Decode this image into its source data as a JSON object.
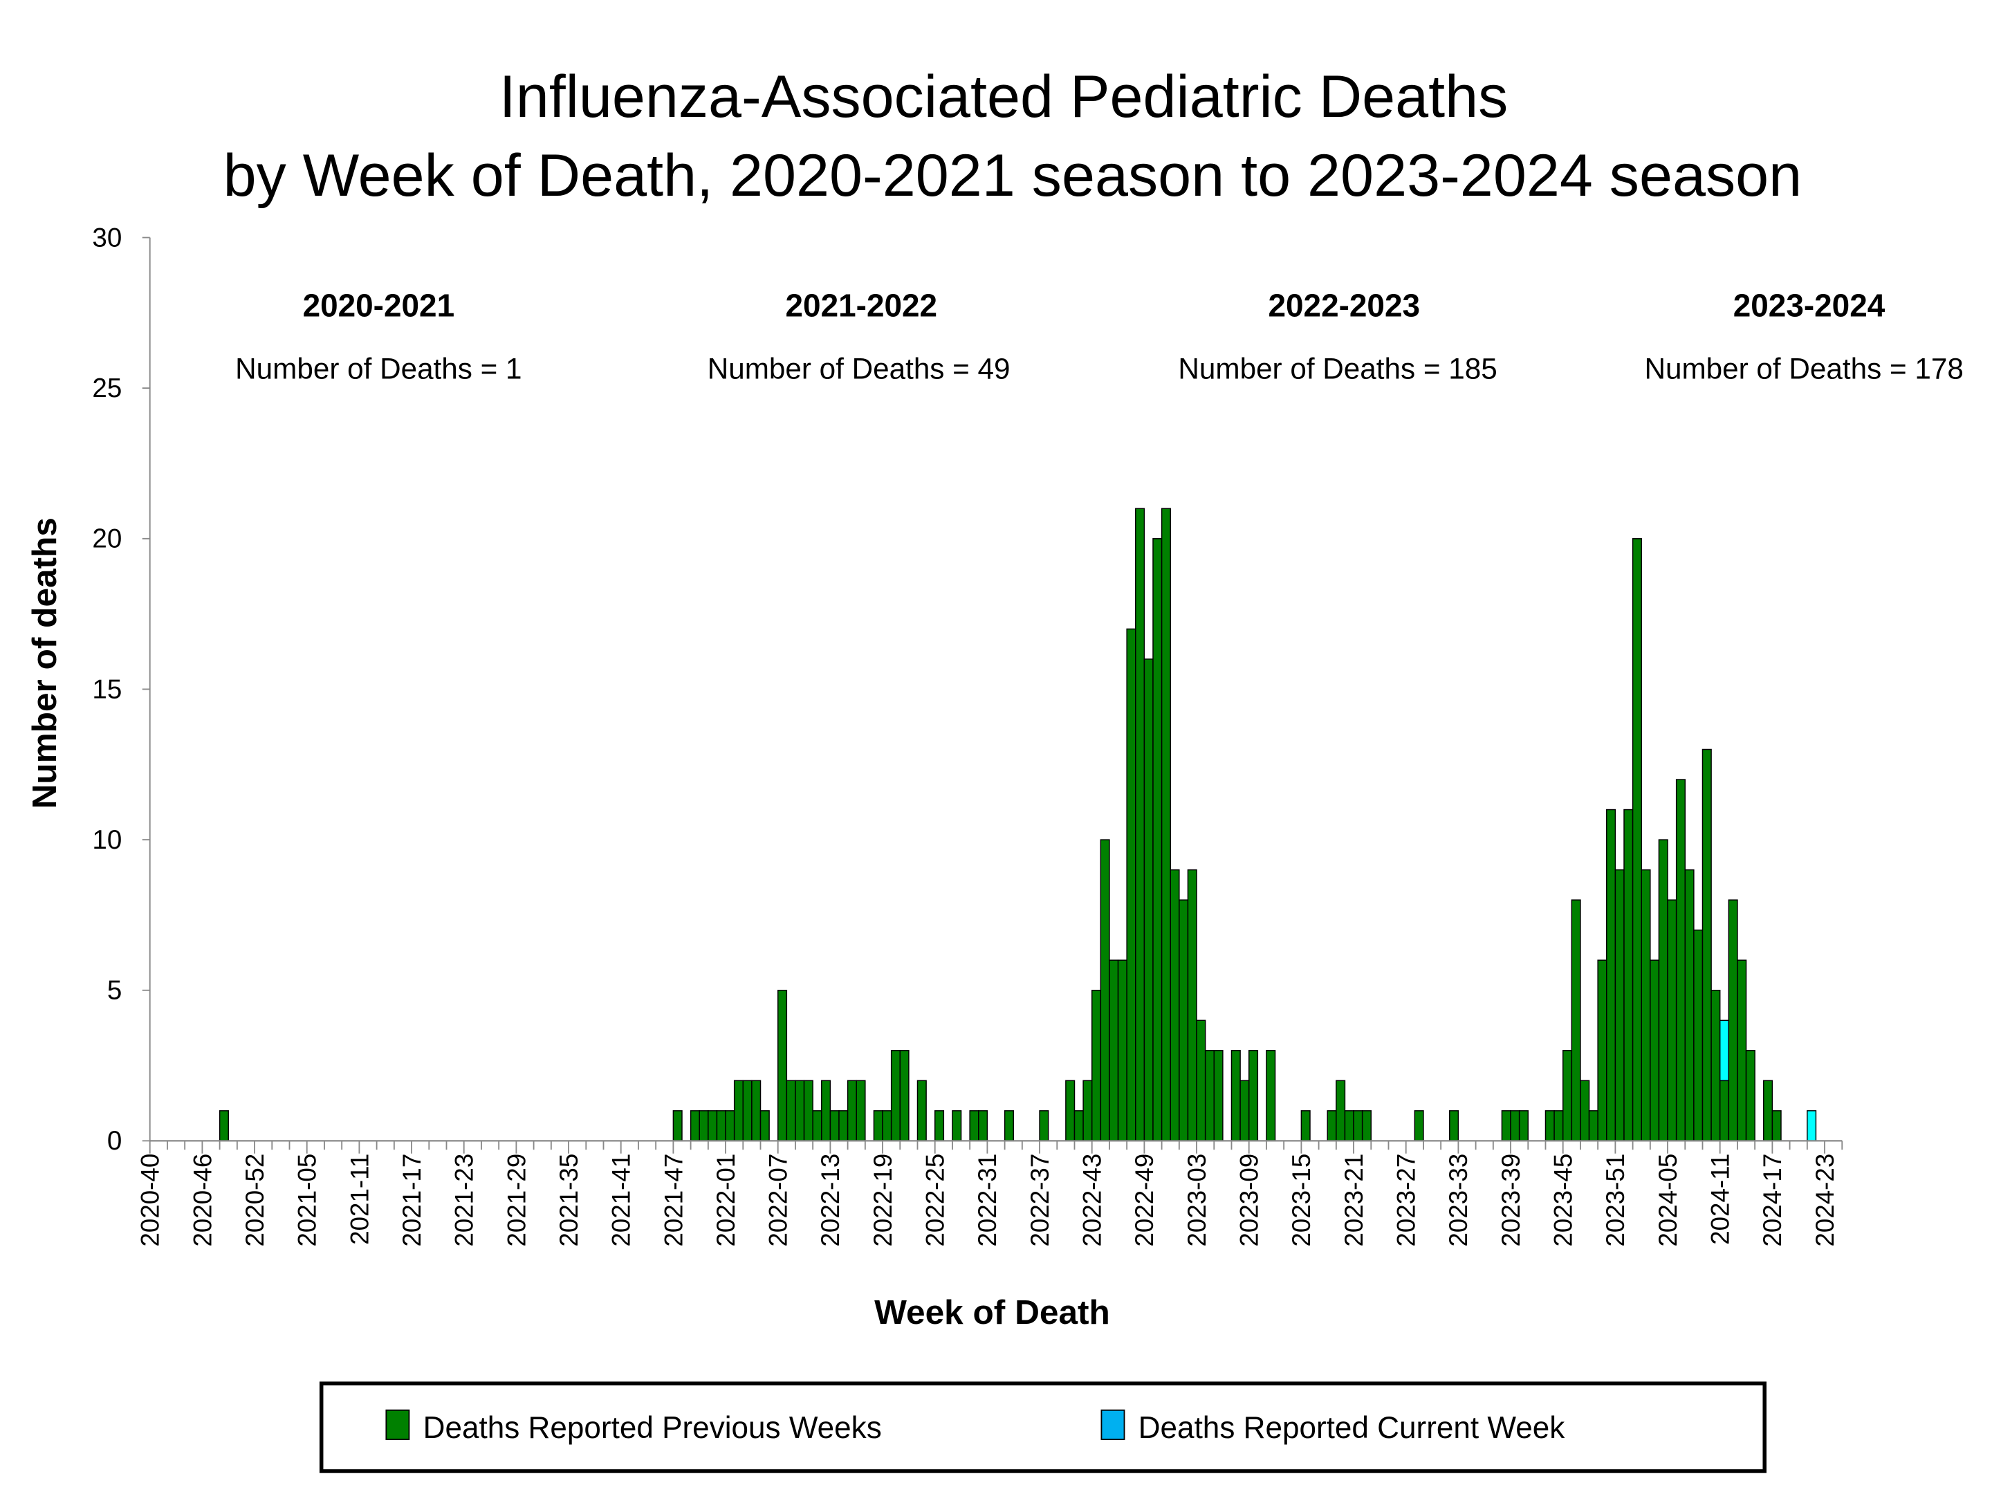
{
  "chart_data": {
    "type": "bar",
    "title": [
      "Influenza-Associated Pediatric Deaths",
      "by Week of Death, 2020-2021 season to 2023-2024 season"
    ],
    "xlabel": "Week of Death",
    "ylabel": "Number of deaths",
    "ylim": [
      0,
      30
    ],
    "yticks": [
      0,
      5,
      10,
      15,
      20,
      25,
      30
    ],
    "x_range": [
      "2020-40",
      "2024-24"
    ],
    "xtick_labels": [
      "2020-40",
      "2020-46",
      "2020-52",
      "2021-05",
      "2021-11",
      "2021-17",
      "2021-23",
      "2021-29",
      "2021-35",
      "2021-41",
      "2021-47",
      "2022-01",
      "2022-07",
      "2022-13",
      "2022-19",
      "2022-25",
      "2022-31",
      "2022-37",
      "2022-43",
      "2022-49",
      "2023-03",
      "2023-09",
      "2023-15",
      "2023-21",
      "2023-27",
      "2023-33",
      "2023-39",
      "2023-45",
      "2023-51",
      "2024-05",
      "2024-11",
      "2024-17",
      "2024-23"
    ],
    "stacked": true,
    "grid": false,
    "legend_placement": "bottom",
    "series": [
      {
        "name": "Deaths Reported Previous Weeks",
        "color": "#008000"
      },
      {
        "name": "Deaths Reported Current Week",
        "color": "#00FFFF",
        "legend_color": "#00B0F0"
      }
    ],
    "bars_columns": [
      "week",
      "previous_weeks",
      "current_week"
    ],
    "bars": [
      [
        "2020-48",
        1,
        0
      ],
      [
        "2021-47",
        1,
        0
      ],
      [
        "2021-49",
        1,
        0
      ],
      [
        "2021-50",
        1,
        0
      ],
      [
        "2021-51",
        1,
        0
      ],
      [
        "2021-52",
        1,
        0
      ],
      [
        "2022-01",
        1,
        0
      ],
      [
        "2022-02",
        2,
        0
      ],
      [
        "2022-03",
        2,
        0
      ],
      [
        "2022-04",
        2,
        0
      ],
      [
        "2022-05",
        1,
        0
      ],
      [
        "2022-07",
        5,
        0
      ],
      [
        "2022-08",
        2,
        0
      ],
      [
        "2022-09",
        2,
        0
      ],
      [
        "2022-10",
        2,
        0
      ],
      [
        "2022-11",
        1,
        0
      ],
      [
        "2022-12",
        2,
        0
      ],
      [
        "2022-13",
        1,
        0
      ],
      [
        "2022-14",
        1,
        0
      ],
      [
        "2022-15",
        2,
        0
      ],
      [
        "2022-16",
        2,
        0
      ],
      [
        "2022-18",
        1,
        0
      ],
      [
        "2022-19",
        1,
        0
      ],
      [
        "2022-20",
        3,
        0
      ],
      [
        "2022-21",
        3,
        0
      ],
      [
        "2022-23",
        2,
        0
      ],
      [
        "2022-25",
        1,
        0
      ],
      [
        "2022-27",
        1,
        0
      ],
      [
        "2022-29",
        1,
        0
      ],
      [
        "2022-30",
        1,
        0
      ],
      [
        "2022-33",
        1,
        0
      ],
      [
        "2022-37",
        1,
        0
      ],
      [
        "2022-40",
        2,
        0
      ],
      [
        "2022-41",
        1,
        0
      ],
      [
        "2022-42",
        2,
        0
      ],
      [
        "2022-43",
        5,
        0
      ],
      [
        "2022-44",
        10,
        0
      ],
      [
        "2022-45",
        6,
        0
      ],
      [
        "2022-46",
        6,
        0
      ],
      [
        "2022-47",
        17,
        0
      ],
      [
        "2022-48",
        21,
        0
      ],
      [
        "2022-49",
        16,
        0
      ],
      [
        "2022-50",
        20,
        0
      ],
      [
        "2022-51",
        21,
        0
      ],
      [
        "2022-52",
        9,
        0
      ],
      [
        "2023-01",
        8,
        0
      ],
      [
        "2023-02",
        9,
        0
      ],
      [
        "2023-03",
        4,
        0
      ],
      [
        "2023-04",
        3,
        0
      ],
      [
        "2023-05",
        3,
        0
      ],
      [
        "2023-07",
        3,
        0
      ],
      [
        "2023-08",
        2,
        0
      ],
      [
        "2023-09",
        3,
        0
      ],
      [
        "2023-11",
        3,
        0
      ],
      [
        "2023-15",
        1,
        0
      ],
      [
        "2023-18",
        1,
        0
      ],
      [
        "2023-19",
        2,
        0
      ],
      [
        "2023-20",
        1,
        0
      ],
      [
        "2023-21",
        1,
        0
      ],
      [
        "2023-22",
        1,
        0
      ],
      [
        "2023-28",
        1,
        0
      ],
      [
        "2023-32",
        1,
        0
      ],
      [
        "2023-38",
        1,
        0
      ],
      [
        "2023-39",
        1,
        0
      ],
      [
        "2023-40",
        1,
        0
      ],
      [
        "2023-43",
        1,
        0
      ],
      [
        "2023-44",
        1,
        0
      ],
      [
        "2023-45",
        3,
        0
      ],
      [
        "2023-46",
        8,
        0
      ],
      [
        "2023-47",
        2,
        0
      ],
      [
        "2023-48",
        1,
        0
      ],
      [
        "2023-49",
        6,
        0
      ],
      [
        "2023-50",
        11,
        0
      ],
      [
        "2023-51",
        9,
        0
      ],
      [
        "2023-52",
        11,
        0
      ],
      [
        "2024-01",
        20,
        0
      ],
      [
        "2024-02",
        9,
        0
      ],
      [
        "2024-03",
        6,
        0
      ],
      [
        "2024-04",
        10,
        0
      ],
      [
        "2024-05",
        8,
        0
      ],
      [
        "2024-06",
        12,
        0
      ],
      [
        "2024-07",
        9,
        0
      ],
      [
        "2024-08",
        7,
        0
      ],
      [
        "2024-09",
        13,
        0
      ],
      [
        "2024-10",
        5,
        0
      ],
      [
        "2024-11",
        2,
        2
      ],
      [
        "2024-12",
        8,
        0
      ],
      [
        "2024-13",
        6,
        0
      ],
      [
        "2024-14",
        3,
        0
      ],
      [
        "2024-16",
        2,
        0
      ],
      [
        "2024-17",
        1,
        0
      ],
      [
        "2024-21",
        0,
        1
      ]
    ],
    "annotations": [
      {
        "season": "2020-2021",
        "text": "Number of Deaths = 1"
      },
      {
        "season": "2021-2022",
        "text": "Number of Deaths = 49"
      },
      {
        "season": "2022-2023",
        "text": "Number of Deaths = 185"
      },
      {
        "season": "2023-2024",
        "text": "Number of Deaths = 178"
      }
    ]
  }
}
